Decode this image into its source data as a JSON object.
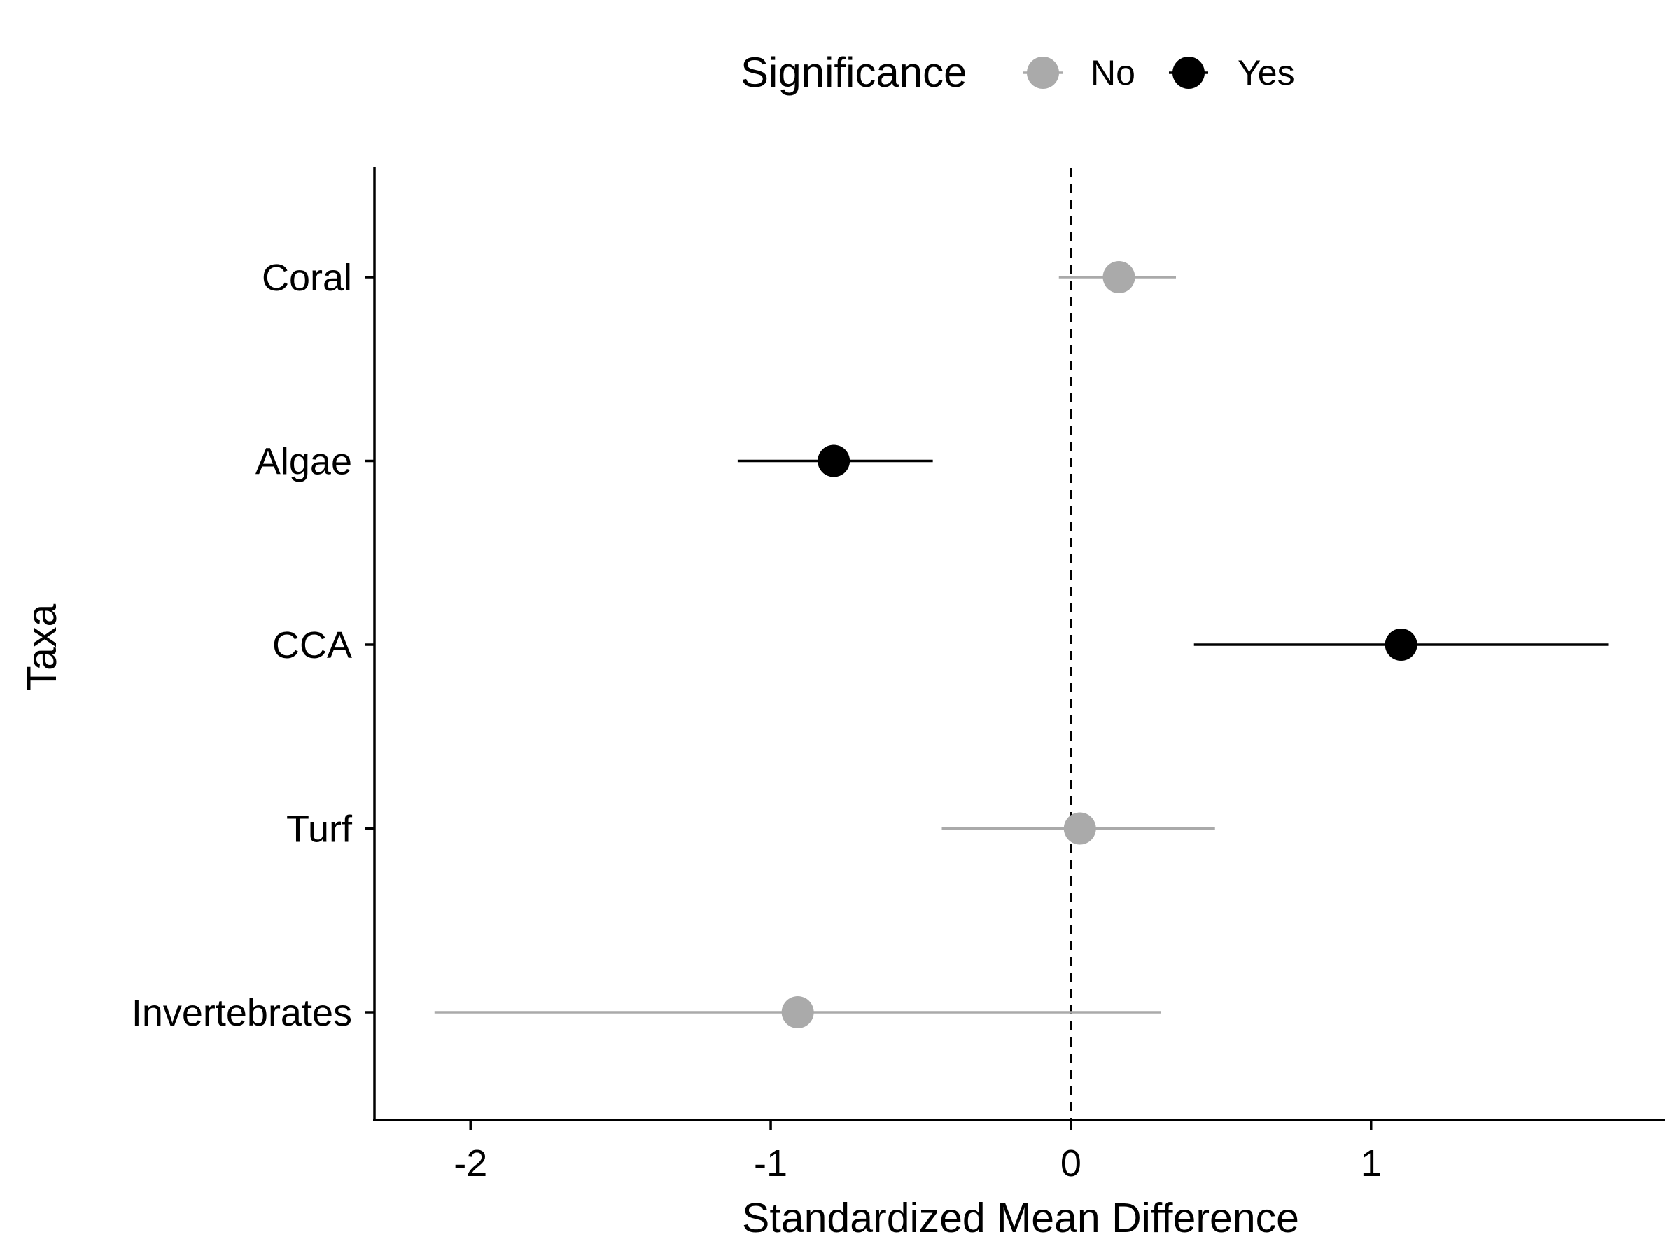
{
  "chart_data": {
    "type": "scatter",
    "subtype": "forest-plot",
    "title": "",
    "xlabel": "Standardized Mean Difference",
    "ylabel": "Taxa",
    "xlim": [
      -2.32,
      1.98
    ],
    "x_ticks": [
      {
        "value": -2,
        "label": "-2"
      },
      {
        "value": -1,
        "label": "-1"
      },
      {
        "value": 0,
        "label": "0"
      },
      {
        "value": 1,
        "label": "1"
      }
    ],
    "reference_line": {
      "x": 0,
      "style": "dashed"
    },
    "grid": false,
    "legend": {
      "title": "Significance",
      "position": "top",
      "items": [
        {
          "label": "No",
          "color": "#aaaaaa"
        },
        {
          "label": "Yes",
          "color": "#000000"
        }
      ]
    },
    "categories": [
      "Coral",
      "Algae",
      "CCA",
      "Turf",
      "Invertebrates"
    ],
    "points": [
      {
        "taxon": "Coral",
        "estimate": 0.16,
        "lower": -0.04,
        "upper": 0.35,
        "significance": "No"
      },
      {
        "taxon": "Algae",
        "estimate": -0.79,
        "lower": -1.11,
        "upper": -0.46,
        "significance": "Yes"
      },
      {
        "taxon": "CCA",
        "estimate": 1.1,
        "lower": 0.41,
        "upper": 1.79,
        "significance": "Yes"
      },
      {
        "taxon": "Turf",
        "estimate": 0.03,
        "lower": -0.43,
        "upper": 0.48,
        "significance": "No"
      },
      {
        "taxon": "Invertebrates",
        "estimate": -0.91,
        "lower": -2.12,
        "upper": 0.3,
        "significance": "No"
      }
    ]
  }
}
